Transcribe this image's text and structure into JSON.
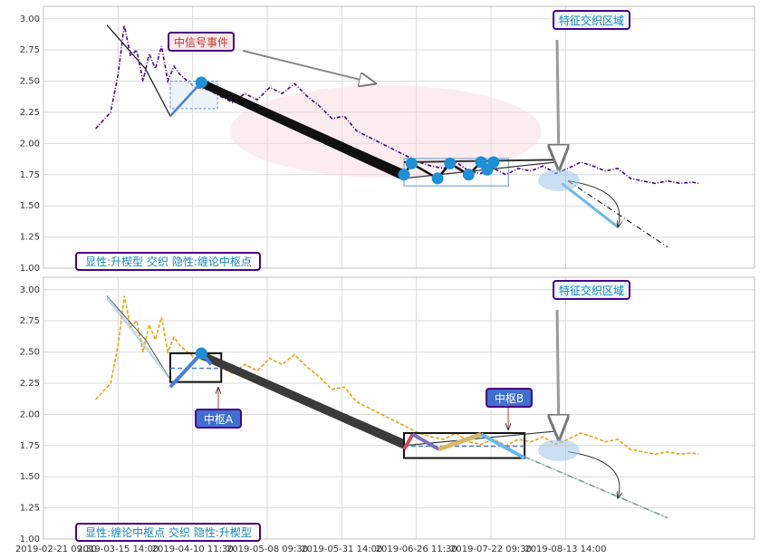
{
  "chart_data": [
    {
      "type": "line",
      "panel": "top",
      "ylim": [
        1.0,
        3.1
      ],
      "yticks": [
        "1.00",
        "1.25",
        "1.50",
        "1.75",
        "2.00",
        "2.25",
        "2.50",
        "2.75",
        "3.00"
      ],
      "line_color": "#4b0082",
      "series": [
        {
          "values": [
            [
              0.0,
              2.12
            ],
            [
              1.2,
              2.25
            ],
            [
              1.8,
              2.55
            ],
            [
              2.3,
              2.95
            ],
            [
              2.8,
              2.7
            ],
            [
              3.3,
              2.75
            ],
            [
              3.8,
              2.5
            ],
            [
              4.3,
              2.72
            ],
            [
              4.8,
              2.6
            ],
            [
              5.3,
              2.78
            ],
            [
              5.8,
              2.5
            ],
            [
              6.3,
              2.62
            ],
            [
              6.8,
              2.55
            ],
            [
              7.4,
              2.5
            ],
            [
              8.0,
              2.45
            ],
            [
              9.0,
              2.43
            ],
            [
              10.0,
              2.38
            ],
            [
              11.0,
              2.33
            ],
            [
              12.0,
              2.4
            ],
            [
              13.0,
              2.35
            ],
            [
              14.0,
              2.45
            ],
            [
              15.0,
              2.4
            ],
            [
              16.0,
              2.48
            ],
            [
              17.0,
              2.38
            ],
            [
              18.0,
              2.3
            ],
            [
              19.0,
              2.2
            ],
            [
              20.0,
              2.22
            ],
            [
              21.0,
              2.1
            ],
            [
              22.0,
              2.05
            ],
            [
              23.0,
              2.0
            ],
            [
              24.0,
              1.95
            ],
            [
              25.0,
              1.9
            ],
            [
              26.0,
              1.85
            ],
            [
              27.0,
              1.82
            ],
            [
              28.0,
              1.8
            ],
            [
              29.0,
              1.85
            ],
            [
              30.0,
              1.78
            ],
            [
              31.0,
              1.76
            ],
            [
              32.0,
              1.8
            ],
            [
              33.0,
              1.75
            ],
            [
              34.0,
              1.8
            ],
            [
              35.0,
              1.78
            ],
            [
              36.0,
              1.82
            ],
            [
              37.0,
              1.76
            ],
            [
              38.0,
              1.8
            ],
            [
              39.0,
              1.85
            ],
            [
              40.0,
              1.82
            ],
            [
              41.0,
              1.78
            ],
            [
              42.0,
              1.8
            ],
            [
              43.0,
              1.72
            ],
            [
              44.0,
              1.7
            ],
            [
              45.0,
              1.68
            ],
            [
              46.0,
              1.7
            ],
            [
              47.0,
              1.68
            ],
            [
              48.0,
              1.69
            ],
            [
              48.5,
              1.68
            ]
          ]
        }
      ],
      "texts": {
        "event_label": "中信号事件",
        "feature_label": "特征交织区域",
        "legend": "显性:升楔型 交织 隐性:缠论中枢点"
      }
    },
    {
      "type": "line",
      "panel": "bottom",
      "ylim": [
        1.0,
        3.1
      ],
      "yticks": [
        "1.00",
        "1.25",
        "1.50",
        "1.75",
        "2.00",
        "2.25",
        "2.50",
        "2.75",
        "3.00"
      ],
      "line_color": "#e8a317",
      "series": [
        {
          "values": [
            [
              0.0,
              2.12
            ],
            [
              1.2,
              2.25
            ],
            [
              1.8,
              2.55
            ],
            [
              2.3,
              2.95
            ],
            [
              2.8,
              2.7
            ],
            [
              3.3,
              2.75
            ],
            [
              3.8,
              2.5
            ],
            [
              4.3,
              2.72
            ],
            [
              4.8,
              2.6
            ],
            [
              5.3,
              2.78
            ],
            [
              5.8,
              2.5
            ],
            [
              6.3,
              2.62
            ],
            [
              6.8,
              2.55
            ],
            [
              7.4,
              2.5
            ],
            [
              8.0,
              2.45
            ],
            [
              9.0,
              2.43
            ],
            [
              10.0,
              2.38
            ],
            [
              11.0,
              2.33
            ],
            [
              12.0,
              2.4
            ],
            [
              13.0,
              2.35
            ],
            [
              14.0,
              2.45
            ],
            [
              15.0,
              2.4
            ],
            [
              16.0,
              2.48
            ],
            [
              17.0,
              2.38
            ],
            [
              18.0,
              2.3
            ],
            [
              19.0,
              2.2
            ],
            [
              20.0,
              2.22
            ],
            [
              21.0,
              2.1
            ],
            [
              22.0,
              2.05
            ],
            [
              23.0,
              2.0
            ],
            [
              24.0,
              1.95
            ],
            [
              25.0,
              1.9
            ],
            [
              26.0,
              1.85
            ],
            [
              27.0,
              1.82
            ],
            [
              28.0,
              1.8
            ],
            [
              29.0,
              1.85
            ],
            [
              30.0,
              1.78
            ],
            [
              31.0,
              1.76
            ],
            [
              32.0,
              1.8
            ],
            [
              33.0,
              1.75
            ],
            [
              34.0,
              1.8
            ],
            [
              35.0,
              1.78
            ],
            [
              36.0,
              1.82
            ],
            [
              37.0,
              1.76
            ],
            [
              38.0,
              1.8
            ],
            [
              39.0,
              1.85
            ],
            [
              40.0,
              1.82
            ],
            [
              41.0,
              1.78
            ],
            [
              42.0,
              1.8
            ],
            [
              43.0,
              1.72
            ],
            [
              44.0,
              1.7
            ],
            [
              45.0,
              1.68
            ],
            [
              46.0,
              1.7
            ],
            [
              47.0,
              1.68
            ],
            [
              48.0,
              1.69
            ],
            [
              48.5,
              1.68
            ]
          ]
        }
      ],
      "texts": {
        "zone_a": "中枢A",
        "zone_b": "中枢B",
        "feature_label": "特征交织区域",
        "legend": "显性:缠论中枢点 交织 隐性:升楔型"
      }
    }
  ],
  "xticks": [
    "2019-02-21 09:30",
    "2019-03-15 14:00",
    "2019-04-10 11:30",
    "2019-05-08 09:30",
    "2019-05-31 14:00",
    "2019-06-26 11:30",
    "2019-07-22 09:30",
    "2019-08-13 14:00"
  ],
  "xlim": [
    -4.2,
    53
  ],
  "xtick_positions": [
    -4.2,
    1.8,
    7.8,
    13.8,
    19.8,
    25.8,
    31.8,
    37.8
  ],
  "top_overlay": {
    "zigzag": [
      [
        6.0,
        2.22
      ],
      [
        8.5,
        2.49
      ],
      [
        24.8,
        1.75
      ],
      [
        25.4,
        1.84
      ],
      [
        27.5,
        1.72
      ],
      [
        28.5,
        1.84
      ],
      [
        30.0,
        1.75
      ],
      [
        31.0,
        1.85
      ],
      [
        31.5,
        1.79
      ],
      [
        32.0,
        1.85
      ]
    ],
    "wedge_upper": [
      [
        24.8,
        1.85
      ],
      [
        37.5,
        1.87
      ]
    ],
    "wedge_lower": [
      [
        24.8,
        1.72
      ],
      [
        37.0,
        1.85
      ]
    ],
    "pivot_box": {
      "x0": 24.8,
      "x1": 33.2,
      "y0": 1.66,
      "y1": 1.88
    },
    "pivot_box_early": {
      "x0": 6.0,
      "x1": 9.8,
      "y0": 2.28,
      "y1": 2.5
    },
    "projection": [
      [
        38.0,
        1.7
      ],
      [
        42.0,
        1.33
      ],
      [
        46.0,
        1.17
      ]
    ],
    "projection_endpoint": [
      42.0,
      1.33
    ],
    "ellipse_center": [
      22.0,
      2.12
    ]
  },
  "bottom_overlay": {
    "box_a": {
      "x0": 6.0,
      "x1": 10.1,
      "y0": 2.26,
      "y1": 2.49
    },
    "box_b": {
      "x0": 24.8,
      "x1": 34.5,
      "y0": 1.65,
      "y1": 1.85
    },
    "wedge": [
      [
        24.8,
        1.75
      ],
      [
        37.5,
        1.87
      ]
    ],
    "projection": [
      [
        38.0,
        1.7
      ],
      [
        42.0,
        1.33
      ],
      [
        46.0,
        1.17
      ]
    ]
  }
}
